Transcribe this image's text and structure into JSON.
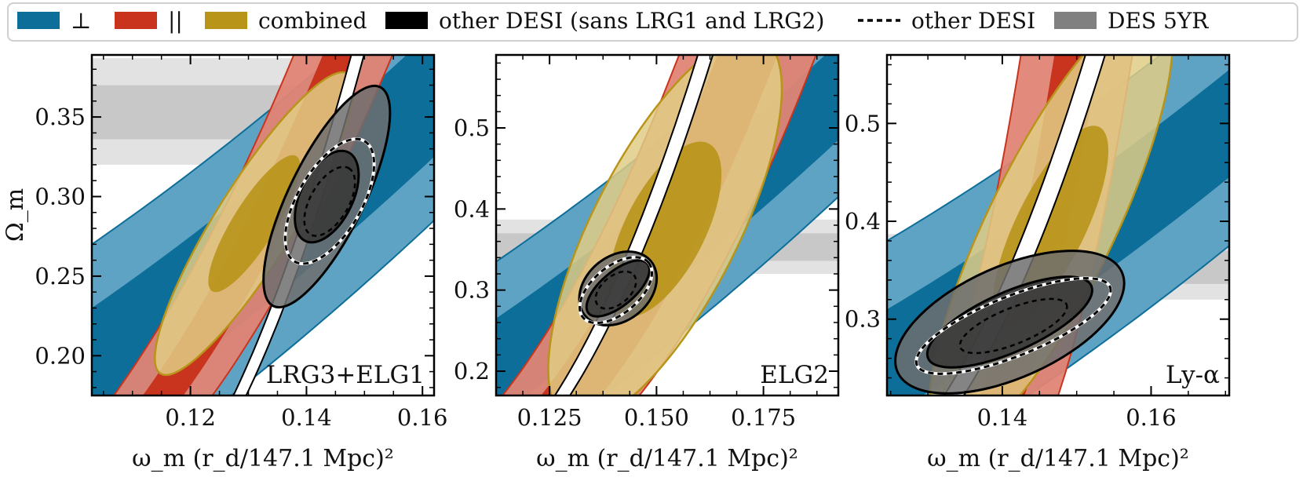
{
  "legend": {
    "items": [
      {
        "label": "⊥",
        "kind": "fill",
        "color": "#0d6e99"
      },
      {
        "label": "||",
        "kind": "fill",
        "color": "#c8341d"
      },
      {
        "label": "combined",
        "kind": "fill",
        "color": "#b89419"
      },
      {
        "label": "other DESI (sans LRG1 and LRG2)",
        "kind": "fill",
        "color": "#000000"
      },
      {
        "label": "other DESI",
        "kind": "dashed",
        "color": "#000000"
      },
      {
        "label": "DES 5YR",
        "kind": "fill",
        "color": "#808080"
      }
    ]
  },
  "colors": {
    "perp": "#0d6e99",
    "perp_light": "#5fa3c4",
    "par": "#c8341d",
    "par_light": "#e08474",
    "comb": "#b89419",
    "comb_light": "#e0cc85",
    "des_inner": "#c8c8c8",
    "des_outer": "#e2e2e2"
  },
  "chart_data": [
    {
      "type": "contour",
      "panel_label": "LRG3+ELG1",
      "xlabel": "ω_m (r_d/147.1 Mpc)²",
      "ylabel": "Ω_m",
      "xlim": [
        0.103,
        0.162
      ],
      "ylim": [
        0.175,
        0.389
      ],
      "xticks": [
        0.12,
        0.14,
        0.16
      ],
      "xtick_labels": [
        "0.12",
        "0.14",
        "0.16"
      ],
      "yticks": [
        0.2,
        0.25,
        0.3,
        0.35
      ],
      "ytick_labels": [
        "0.20",
        "0.25",
        "0.30",
        "0.35"
      ],
      "des_band": {
        "inner": [
          0.336,
          0.37
        ],
        "outer": [
          0.32,
          0.387
        ]
      },
      "perp_band": {
        "center": [
          [
            0.103,
            0.19
          ],
          [
            0.162,
            0.365
          ]
        ],
        "inner_hw": 0.008,
        "outer_hw": 0.016
      },
      "par_band": {
        "center": [
          [
            0.11,
            0.15
          ],
          [
            0.15,
            0.422
          ]
        ],
        "inner_hw": 0.0035,
        "outer_hw": 0.0085
      },
      "other_desi_curve": {
        "center": [
          [
            0.125,
            0.15
          ],
          [
            0.15,
            0.405
          ]
        ],
        "hw": 0.0005
      },
      "combined": {
        "center": [
          0.131,
          0.283
        ],
        "rx1": 0.0053,
        "ry1": 0.0043,
        "rx2": 0.0305,
        "ry2": 0.0067,
        "angle_deg": 58
      },
      "other_desi_sans": {
        "center": [
          0.1435,
          0.3
        ],
        "rx1": 0.0085,
        "ry1": 0.0045,
        "rx2": 0.021,
        "ry2": 0.0065,
        "angle_deg": 64
      },
      "other_desi": {
        "center": [
          0.144,
          0.297
        ],
        "rx": 0.012,
        "ry": 0.0055,
        "angle_deg": 60
      }
    },
    {
      "type": "contour",
      "panel_label": "ELG2",
      "xlabel": "ω_m (r_d/147.1 Mpc)²",
      "ylabel": "",
      "xlim": [
        0.1125,
        0.1925
      ],
      "ylim": [
        0.17,
        0.59
      ],
      "xticks": [
        0.125,
        0.15,
        0.175
      ],
      "xtick_labels": [
        "0.125",
        "0.150",
        "0.175"
      ],
      "yticks": [
        0.2,
        0.3,
        0.4,
        0.5
      ],
      "ytick_labels": [
        "0.2",
        "0.3",
        "0.4",
        "0.5"
      ],
      "des_band": {
        "inner": [
          0.336,
          0.37
        ],
        "outer": [
          0.32,
          0.387
        ]
      },
      "perp_band": {
        "center": [
          [
            0.1125,
            0.205
          ],
          [
            0.1925,
            0.545
          ]
        ],
        "inner_hw": 0.012,
        "outer_hw": 0.026
      },
      "par_band": {
        "center": [
          [
            0.13,
            0.17
          ],
          [
            0.172,
            0.6
          ]
        ],
        "inner_hw": 0.007,
        "outer_hw": 0.016
      },
      "other_desi_curve": {
        "center": [
          [
            0.128,
            0.17
          ],
          [
            0.162,
            0.6
          ]
        ],
        "hw": 0.0008
      },
      "combined": {
        "center": [
          0.152,
          0.375
        ],
        "rx1": 0.0135,
        "ry1": 0.009,
        "rx2": 0.05,
        "ry2": 0.017,
        "angle_deg": 63
      },
      "other_desi_sans": {
        "center": [
          0.141,
          0.302
        ],
        "rx1": 0.009,
        "ry1": 0.004,
        "rx2": 0.01,
        "ry2": 0.0075,
        "angle_deg": 40
      },
      "other_desi": {
        "center": [
          0.1405,
          0.3
        ],
        "rx": 0.01,
        "ry": 0.0055,
        "angle_deg": 40
      }
    },
    {
      "type": "contour",
      "panel_label": "Ly-α",
      "xlabel": "ω_m (r_d/147.1 Mpc)²",
      "ylabel": "",
      "xlim": [
        0.1245,
        0.1705
      ],
      "ylim": [
        0.222,
        0.57
      ],
      "xticks": [
        0.14,
        0.16
      ],
      "xtick_labels": [
        "0.14",
        "0.16"
      ],
      "yticks": [
        0.3,
        0.4,
        0.5
      ],
      "ytick_labels": [
        "0.3",
        "0.4",
        "0.5"
      ],
      "des_band": {
        "inner": [
          0.336,
          0.37
        ],
        "outer": [
          0.32,
          0.387
        ]
      },
      "perp_band": {
        "center": [
          [
            0.1245,
            0.255
          ],
          [
            0.1705,
            0.5
          ]
        ],
        "inner_hw": 0.011,
        "outer_hw": 0.025
      },
      "par_band": {
        "center": [
          [
            0.14,
            0.222
          ],
          [
            0.15,
            0.57
          ]
        ],
        "inner_hw": 0.003,
        "outer_hw": 0.0075
      },
      "other_desi_curve": {
        "center": [
          [
            0.1335,
            0.222
          ],
          [
            0.1525,
            0.57
          ]
        ],
        "hw": 0.0006
      },
      "combined": {
        "center": [
          0.1465,
          0.395
        ],
        "rx1": 0.01,
        "ry1": 0.006,
        "rx2": 0.033,
        "ry2": 0.0085,
        "angle_deg": 64
      },
      "other_desi_sans": {
        "center": [
          0.141,
          0.297
        ],
        "rx1": 0.012,
        "ry1": 0.004,
        "rx2": 0.0165,
        "ry2": 0.0075,
        "angle_deg": 24
      },
      "other_desi": {
        "center": [
          0.1415,
          0.293
        ],
        "rx": 0.014,
        "ry": 0.004,
        "angle_deg": 22
      }
    }
  ]
}
